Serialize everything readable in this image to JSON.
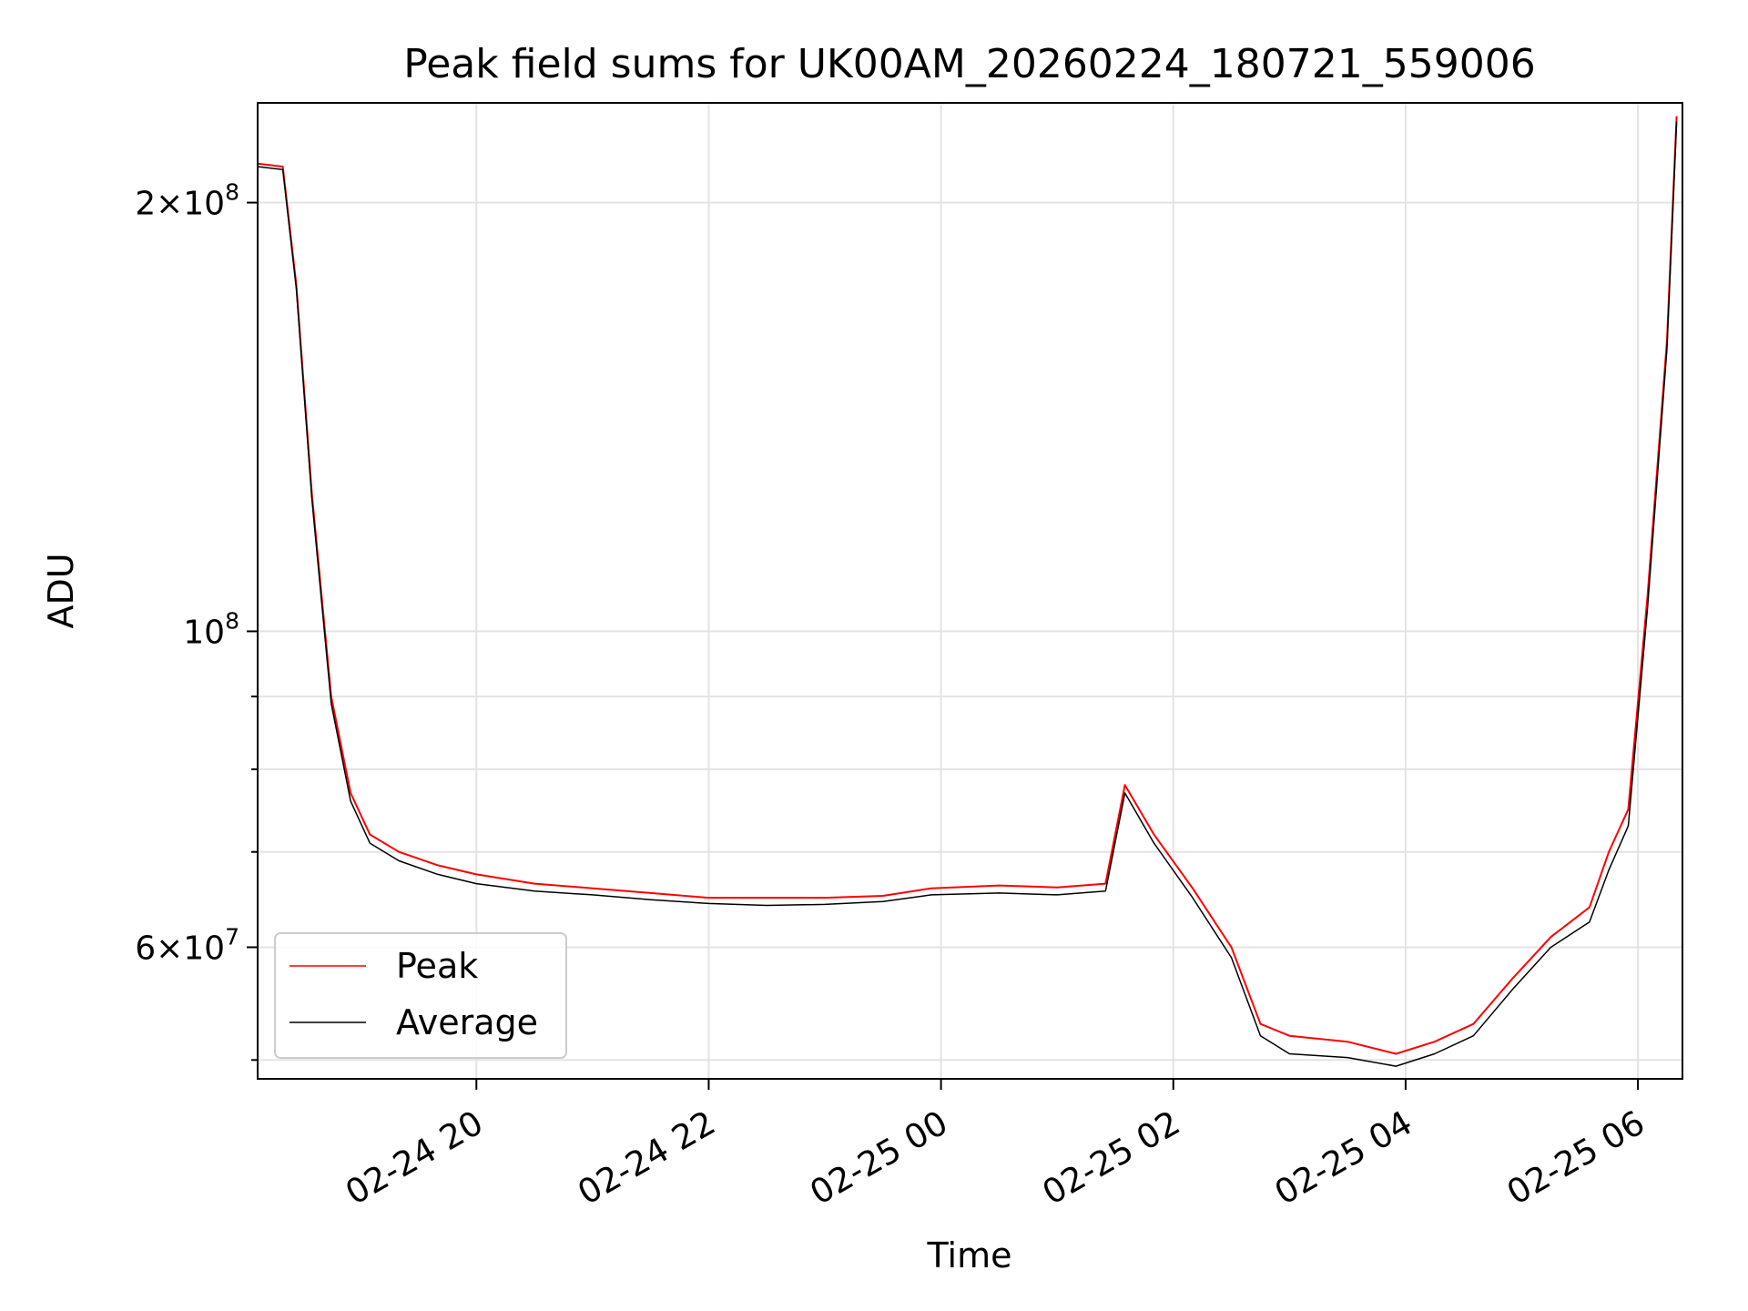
{
  "chart_data": {
    "type": "line",
    "title": "Peak field sums for UK00AM_20260224_180721_559006",
    "xlabel": "Time",
    "ylabel": "ADU",
    "y_scale": "log",
    "ylim": [
      48500000,
      235000000
    ],
    "xlim": [
      "2026-02-24 18:07",
      "2026-02-25 06:23"
    ],
    "grid": true,
    "legend_position": "lower left",
    "x_ticks": [
      {
        "value": "2026-02-24 20:00",
        "label": "02-24 20"
      },
      {
        "value": "2026-02-24 22:00",
        "label": "02-24 22"
      },
      {
        "value": "2026-02-25 00:00",
        "label": "02-25 00"
      },
      {
        "value": "2026-02-25 02:00",
        "label": "02-25 02"
      },
      {
        "value": "2026-02-25 04:00",
        "label": "02-25 04"
      },
      {
        "value": "2026-02-25 06:00",
        "label": "02-25 06"
      }
    ],
    "y_major_ticks": [
      {
        "value": 60000000,
        "mantissa": "6",
        "exponent": "7"
      },
      {
        "value": 100000000,
        "mantissa": "",
        "exponent": "8"
      },
      {
        "value": 200000000,
        "mantissa": "2",
        "exponent": "8"
      }
    ],
    "y_minor_ticks": [
      50000000,
      70000000,
      80000000,
      90000000
    ],
    "series": [
      {
        "name": "Peak",
        "color": "#ff0000",
        "x": [
          "2026-02-24 18:07",
          "2026-02-24 18:20",
          "2026-02-24 18:27",
          "2026-02-24 18:35",
          "2026-02-24 18:45",
          "2026-02-24 18:55",
          "2026-02-24 19:05",
          "2026-02-24 19:20",
          "2026-02-24 19:40",
          "2026-02-24 20:00",
          "2026-02-24 20:30",
          "2026-02-24 21:00",
          "2026-02-24 21:30",
          "2026-02-24 22:00",
          "2026-02-24 22:30",
          "2026-02-24 23:00",
          "2026-02-24 23:30",
          "2026-02-24 23:55",
          "2026-02-25 00:30",
          "2026-02-25 01:00",
          "2026-02-25 01:25",
          "2026-02-25 01:35",
          "2026-02-25 01:50",
          "2026-02-25 02:10",
          "2026-02-25 02:30",
          "2026-02-25 02:45",
          "2026-02-25 03:00",
          "2026-02-25 03:30",
          "2026-02-25 03:55",
          "2026-02-25 04:15",
          "2026-02-25 04:35",
          "2026-02-25 04:55",
          "2026-02-25 05:15",
          "2026-02-25 05:35",
          "2026-02-25 05:45",
          "2026-02-25 05:55",
          "2026-02-25 06:05",
          "2026-02-25 06:15",
          "2026-02-25 06:20"
        ],
        "y": [
          213000000,
          212000000,
          175000000,
          125000000,
          90000000,
          77000000,
          72000000,
          70000000,
          68500000,
          67500000,
          66500000,
          66000000,
          65500000,
          65000000,
          65000000,
          65000000,
          65200000,
          66000000,
          66300000,
          66100000,
          66500000,
          78000000,
          72000000,
          66000000,
          60000000,
          53000000,
          52000000,
          51500000,
          50500000,
          51500000,
          53000000,
          57000000,
          61000000,
          64000000,
          70000000,
          75000000,
          106000000,
          160000000,
          230000000
        ]
      },
      {
        "name": "Average",
        "color": "#000000",
        "x": [
          "2026-02-24 18:07",
          "2026-02-24 18:20",
          "2026-02-24 18:27",
          "2026-02-24 18:35",
          "2026-02-24 18:45",
          "2026-02-24 18:55",
          "2026-02-24 19:05",
          "2026-02-24 19:20",
          "2026-02-24 19:40",
          "2026-02-24 20:00",
          "2026-02-24 20:30",
          "2026-02-24 21:00",
          "2026-02-24 21:30",
          "2026-02-24 22:00",
          "2026-02-24 22:30",
          "2026-02-24 23:00",
          "2026-02-24 23:30",
          "2026-02-24 23:55",
          "2026-02-25 00:30",
          "2026-02-25 01:00",
          "2026-02-25 01:25",
          "2026-02-25 01:35",
          "2026-02-25 01:50",
          "2026-02-25 02:10",
          "2026-02-25 02:30",
          "2026-02-25 02:45",
          "2026-02-25 03:00",
          "2026-02-25 03:30",
          "2026-02-25 03:55",
          "2026-02-25 04:15",
          "2026-02-25 04:35",
          "2026-02-25 04:55",
          "2026-02-25 05:15",
          "2026-02-25 05:35",
          "2026-02-25 05:45",
          "2026-02-25 05:55",
          "2026-02-25 06:05",
          "2026-02-25 06:15",
          "2026-02-25 06:20"
        ],
        "y": [
          212000000,
          211000000,
          174000000,
          124000000,
          89000000,
          76000000,
          71000000,
          69000000,
          67500000,
          66500000,
          65700000,
          65300000,
          64800000,
          64400000,
          64200000,
          64300000,
          64600000,
          65300000,
          65500000,
          65300000,
          65700000,
          77000000,
          71000000,
          65000000,
          59000000,
          52000000,
          50500000,
          50200000,
          49500000,
          50500000,
          52000000,
          56000000,
          60000000,
          62500000,
          68000000,
          73000000,
          104000000,
          158000000,
          228000000
        ]
      }
    ]
  }
}
